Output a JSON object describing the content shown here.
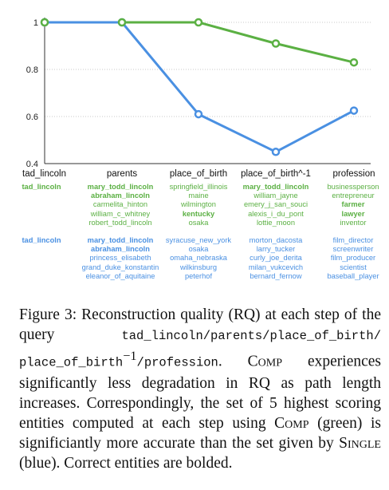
{
  "chart_data": {
    "type": "line",
    "categories": [
      "tad_lincoln",
      "parents",
      "place_of_birth",
      "place_of_birth^-1",
      "profession"
    ],
    "series": [
      {
        "name": "Comp",
        "color": "#5bb043",
        "values": [
          1.0,
          1.0,
          1.0,
          0.91,
          0.83
        ]
      },
      {
        "name": "Single",
        "color": "#4a90e2",
        "values": [
          1.0,
          1.0,
          0.61,
          0.45,
          0.625
        ]
      }
    ],
    "ylim": [
      0.4,
      1.0
    ],
    "yticks": [
      "0.4",
      "0.6",
      "0.8",
      "1"
    ],
    "grid": "horizontal dotted"
  },
  "entity_sets": {
    "green": [
      [
        {
          "text": "tad_lincoln",
          "bold": true
        }
      ],
      [
        {
          "text": "mary_todd_lincoln",
          "bold": true
        },
        {
          "text": "abraham_lincoln",
          "bold": true
        },
        {
          "text": "carmelita_hinton",
          "bold": false
        },
        {
          "text": "william_c_whitney",
          "bold": false
        },
        {
          "text": "robert_todd_lincoln",
          "bold": false
        }
      ],
      [
        {
          "text": "springfield_illinois",
          "bold": false
        },
        {
          "text": "maine",
          "bold": false
        },
        {
          "text": "wilmington",
          "bold": false
        },
        {
          "text": "kentucky",
          "bold": true
        },
        {
          "text": "osaka",
          "bold": false
        }
      ],
      [
        {
          "text": "mary_todd_lincoln",
          "bold": true
        },
        {
          "text": "william_jayne",
          "bold": false
        },
        {
          "text": "emery_j_san_souci",
          "bold": false
        },
        {
          "text": "alexis_i_du_pont",
          "bold": false
        },
        {
          "text": "lottie_moon",
          "bold": false
        }
      ],
      [
        {
          "text": "businessperson",
          "bold": false
        },
        {
          "text": "entrepreneur",
          "bold": false
        },
        {
          "text": "farmer",
          "bold": true
        },
        {
          "text": "lawyer",
          "bold": true
        },
        {
          "text": "inventor",
          "bold": false
        }
      ]
    ],
    "blue": [
      [
        {
          "text": "tad_lincoln",
          "bold": true
        }
      ],
      [
        {
          "text": "mary_todd_lincoln",
          "bold": true
        },
        {
          "text": "abraham_lincoln",
          "bold": true
        },
        {
          "text": "princess_elisabeth",
          "bold": false
        },
        {
          "text": "grand_duke_konstantin",
          "bold": false
        },
        {
          "text": "eleanor_of_aquitaine",
          "bold": false
        }
      ],
      [
        {
          "text": "syracuse_new_york",
          "bold": false
        },
        {
          "text": "osaka",
          "bold": false
        },
        {
          "text": "omaha_nebraska",
          "bold": false
        },
        {
          "text": "wilkinsburg",
          "bold": false
        },
        {
          "text": "peterhof",
          "bold": false
        }
      ],
      [
        {
          "text": "morton_dacosta",
          "bold": false
        },
        {
          "text": "larry_tucker",
          "bold": false
        },
        {
          "text": "curly_joe_derita",
          "bold": false
        },
        {
          "text": "milan_vukcevich",
          "bold": false
        },
        {
          "text": "bernard_fernow",
          "bold": false
        }
      ],
      [
        {
          "text": "film_director",
          "bold": false
        },
        {
          "text": "screenwriter",
          "bold": false
        },
        {
          "text": "film_producer",
          "bold": false
        },
        {
          "text": "scientist",
          "bold": false
        },
        {
          "text": "baseball_player",
          "bold": false
        }
      ]
    ]
  },
  "caption": {
    "p1": "Figure 3: Reconstruction quality (RQ) at each step of the query ",
    "query_a": "tad_lincoln/parents/place_of_birth/",
    "query_b": "place_of_birth",
    "query_sup": "−1",
    "query_c": "/profession",
    "p2": ". ",
    "comp1": "Comp",
    "p3": " experiences significantly less degradation in RQ as path length increases. Correspondingly, the set of 5 highest scoring entities computed at each step using ",
    "comp2": "Comp",
    "p4": " (green) is significiantly more accurate than the set given by ",
    "single": "Single",
    "p5": " (blue). Correct entities are bolded."
  }
}
